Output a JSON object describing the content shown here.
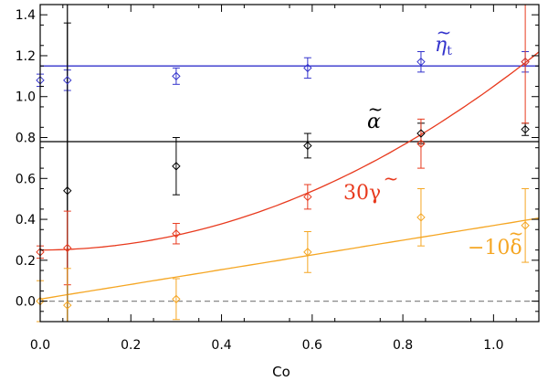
{
  "chart_data": {
    "type": "scatter",
    "title": "",
    "xlabel": "Co",
    "ylabel": "",
    "xlim": [
      0.0,
      1.1
    ],
    "ylim": [
      -0.1,
      1.45
    ],
    "x_ticks": [
      "0.0",
      "0.2",
      "0.4",
      "0.6",
      "0.8",
      "1.0"
    ],
    "y_ticks": [
      "0.0",
      "0.2",
      "0.4",
      "0.6",
      "0.8",
      "1.0",
      "1.2",
      "1.4"
    ],
    "grid": false,
    "reference_lines": [
      {
        "name": "zero",
        "y": 0.0,
        "color": "#888888",
        "style": "dashed"
      },
      {
        "name": "Co=0.06",
        "x": 0.06,
        "color": "#000000",
        "style": "solid"
      }
    ],
    "series": [
      {
        "name": "eta_t",
        "label": "η",
        "label_sub": "t",
        "color": "#3333cc",
        "points": [
          {
            "x": 0.0,
            "y": 1.08,
            "err": 0.03
          },
          {
            "x": 0.06,
            "y": 1.08,
            "err": 0.05
          },
          {
            "x": 0.3,
            "y": 1.1,
            "err": 0.04
          },
          {
            "x": 0.59,
            "y": 1.14,
            "err": 0.05
          },
          {
            "x": 0.84,
            "y": 1.17,
            "err": 0.05
          },
          {
            "x": 1.07,
            "y": 1.17,
            "err": 0.05
          }
        ],
        "fit": {
          "kind": "constant",
          "y": 1.15
        }
      },
      {
        "name": "alpha",
        "label": "α",
        "label_sub": "",
        "color": "#000000",
        "points": [
          {
            "x": 0.06,
            "y": 0.54,
            "err": 0.82
          },
          {
            "x": 0.3,
            "y": 0.66,
            "err": 0.14
          },
          {
            "x": 0.59,
            "y": 0.76,
            "err": 0.06
          },
          {
            "x": 0.84,
            "y": 0.82,
            "err": 0.05
          },
          {
            "x": 1.07,
            "y": 0.84,
            "err": 0.03
          }
        ],
        "fit": {
          "kind": "constant",
          "y": 0.78
        }
      },
      {
        "name": "30 gamma",
        "label": "30γ",
        "label_sub": "",
        "color": "#e83a1e",
        "points": [
          {
            "x": 0.0,
            "y": 0.24,
            "err": 0.03
          },
          {
            "x": 0.06,
            "y": 0.26,
            "err": 0.18
          },
          {
            "x": 0.3,
            "y": 0.33,
            "err": 0.05
          },
          {
            "x": 0.59,
            "y": 0.51,
            "err": 0.06
          },
          {
            "x": 0.84,
            "y": 0.77,
            "err": 0.12
          },
          {
            "x": 1.07,
            "y": 1.17,
            "err": 0.3
          }
        ],
        "fit": {
          "kind": "quadratic",
          "a": 0.25,
          "b": 0.0,
          "c": 0.8
        }
      },
      {
        "name": "-10 delta",
        "label": "−10δ",
        "label_sub": "",
        "color": "#f5a623",
        "points": [
          {
            "x": 0.0,
            "y": 0.0,
            "err": 0.1
          },
          {
            "x": 0.06,
            "y": -0.02,
            "err": 0.18
          },
          {
            "x": 0.3,
            "y": 0.01,
            "err": 0.1
          },
          {
            "x": 0.59,
            "y": 0.24,
            "err": 0.1
          },
          {
            "x": 0.84,
            "y": 0.41,
            "err": 0.14
          },
          {
            "x": 1.07,
            "y": 0.37,
            "err": 0.18
          }
        ],
        "fit": {
          "kind": "linear",
          "a": 0.01,
          "b": 0.36
        }
      }
    ]
  }
}
